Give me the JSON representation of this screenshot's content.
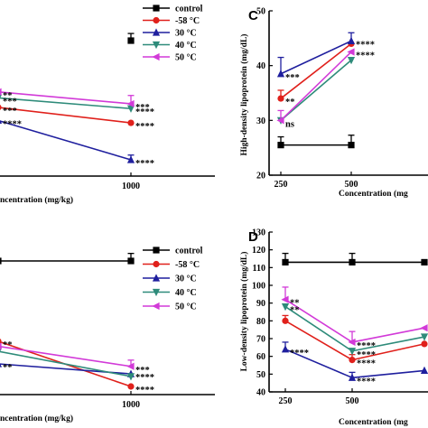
{
  "colors": {
    "control": "#000000",
    "m58": "#e0201b",
    "t30": "#1f1f9e",
    "t40": "#2e8b7a",
    "t50": "#d23ad8"
  },
  "legend_labels": [
    "control",
    "-58 °C",
    "30 °C",
    "40 °C",
    "50 °C"
  ],
  "chart_data": [
    {
      "panel": "top-left",
      "type": "line",
      "xlabel": "ncentration (mg/kg)",
      "x_ticks": [
        "1000"
      ],
      "legend": "top-right",
      "series": [
        {
          "name": "control",
          "values": [
            null,
            0.0
          ],
          "error": [
            null,
            0.06
          ]
        },
        {
          "name": "-58 °C",
          "values": [
            0.56,
            0.69
          ],
          "error": [
            null,
            null
          ]
        },
        {
          "name": "30 °C",
          "values": [
            0.67,
            1.0
          ],
          "error": [
            null,
            0.04
          ]
        },
        {
          "name": "40 °C",
          "values": [
            0.48,
            0.57
          ],
          "error": [
            null,
            null
          ]
        },
        {
          "name": "50 °C",
          "values": [
            0.43,
            0.53
          ],
          "error": [
            null,
            0.07
          ]
        }
      ],
      "annotations": [
        {
          "text": "**",
          "series": 4,
          "point": 0
        },
        {
          "text": "***",
          "series": 3,
          "point": 0
        },
        {
          "text": "***",
          "series": 1,
          "point": 0
        },
        {
          "text": "****",
          "series": 2,
          "point": 0
        },
        {
          "text": "***",
          "series": 4,
          "point": 1
        },
        {
          "text": "****",
          "series": 3,
          "point": 1
        },
        {
          "text": "****",
          "series": 1,
          "point": 1
        },
        {
          "text": "****",
          "series": 2,
          "point": 1
        }
      ]
    },
    {
      "panel": "C",
      "type": "line",
      "ylabel": "High-density lipoprotein (mg/dL)",
      "xlabel": "Concentration (mg",
      "x_ticks": [
        "250",
        "500"
      ],
      "y_ticks": [
        20,
        30,
        40,
        50
      ],
      "ylim": [
        20,
        50
      ],
      "series": [
        {
          "name": "control",
          "values": [
            25.5,
            25.5
          ],
          "error": [
            1.5,
            1.8
          ]
        },
        {
          "name": "-58 °C",
          "values": [
            34.0,
            44.0
          ],
          "error": [
            1.5,
            null
          ]
        },
        {
          "name": "30 °C",
          "values": [
            38.5,
            44.5
          ],
          "error": [
            3.0,
            1.5
          ]
        },
        {
          "name": "40 °C",
          "values": [
            30.0,
            41.0
          ],
          "error": [
            null,
            null
          ]
        },
        {
          "name": "50 °C",
          "values": [
            30.0,
            42.5
          ],
          "error": [
            1.8,
            null
          ]
        }
      ],
      "annotations": [
        {
          "text": "***",
          "series": 2,
          "point": 0
        },
        {
          "text": "**",
          "series": 1,
          "point": 0
        },
        {
          "text": "ns",
          "series": 4,
          "point": 0
        },
        {
          "text": "****",
          "series": 2,
          "point": 1
        },
        {
          "text": "****",
          "series": 4,
          "point": 1
        }
      ]
    },
    {
      "panel": "bottom-left",
      "type": "line",
      "xlabel": "ncentration (mg/kg)",
      "x_ticks": [
        "1000"
      ],
      "legend": "right",
      "series": [
        {
          "name": "control",
          "values": [
            0.0,
            0.0
          ],
          "error": [
            null,
            0.06
          ]
        },
        {
          "name": "-58 °C",
          "values": [
            0.64,
            1.0
          ],
          "error": [
            null,
            null
          ]
        },
        {
          "name": "30 °C",
          "values": [
            0.82,
            0.9
          ],
          "error": [
            null,
            null
          ]
        },
        {
          "name": "40 °C",
          "values": [
            0.72,
            0.92
          ],
          "error": [
            null,
            null
          ]
        },
        {
          "name": "50 °C",
          "values": [
            0.68,
            0.84
          ],
          "error": [
            null,
            0.05
          ]
        }
      ],
      "annotations": [
        {
          "text": "**",
          "series": 1,
          "point": 0
        },
        {
          "text": "**",
          "series": 2,
          "point": 0
        },
        {
          "text": "***",
          "series": 4,
          "point": 1
        },
        {
          "text": "****",
          "series": 2,
          "point": 1
        },
        {
          "text": "****",
          "series": 1,
          "point": 1
        }
      ]
    },
    {
      "panel": "D",
      "type": "line",
      "ylabel": "Low-density lipoprotein (mg/dL)",
      "xlabel": "Concentration (mg",
      "x_ticks": [
        "250",
        "500"
      ],
      "y_ticks": [
        40,
        50,
        60,
        70,
        80,
        90,
        100,
        110,
        120,
        130
      ],
      "ylim": [
        40,
        130
      ],
      "series": [
        {
          "name": "control",
          "values": [
            113,
            113,
            113
          ],
          "error": [
            5,
            5,
            null
          ]
        },
        {
          "name": "-58 °C",
          "values": [
            80,
            58,
            67
          ],
          "error": [
            3,
            3,
            null
          ]
        },
        {
          "name": "30 °C",
          "values": [
            64,
            48,
            52
          ],
          "error": [
            4,
            3,
            null
          ]
        },
        {
          "name": "40 °C",
          "values": [
            88,
            63,
            71
          ],
          "error": [
            null,
            null,
            null
          ]
        },
        {
          "name": "50 °C",
          "values": [
            92,
            68,
            76
          ],
          "error": [
            7,
            6,
            null
          ]
        }
      ],
      "annotations": [
        {
          "text": "**",
          "series": 4,
          "point": 0
        },
        {
          "text": "**",
          "series": 3,
          "point": 0
        },
        {
          "text": "****",
          "series": 2,
          "point": 0
        },
        {
          "text": "****",
          "series": 4,
          "point": 1
        },
        {
          "text": "****",
          "series": 3,
          "point": 1
        },
        {
          "text": "****",
          "series": 1,
          "point": 1
        },
        {
          "text": "****",
          "series": 2,
          "point": 1
        }
      ]
    }
  ]
}
